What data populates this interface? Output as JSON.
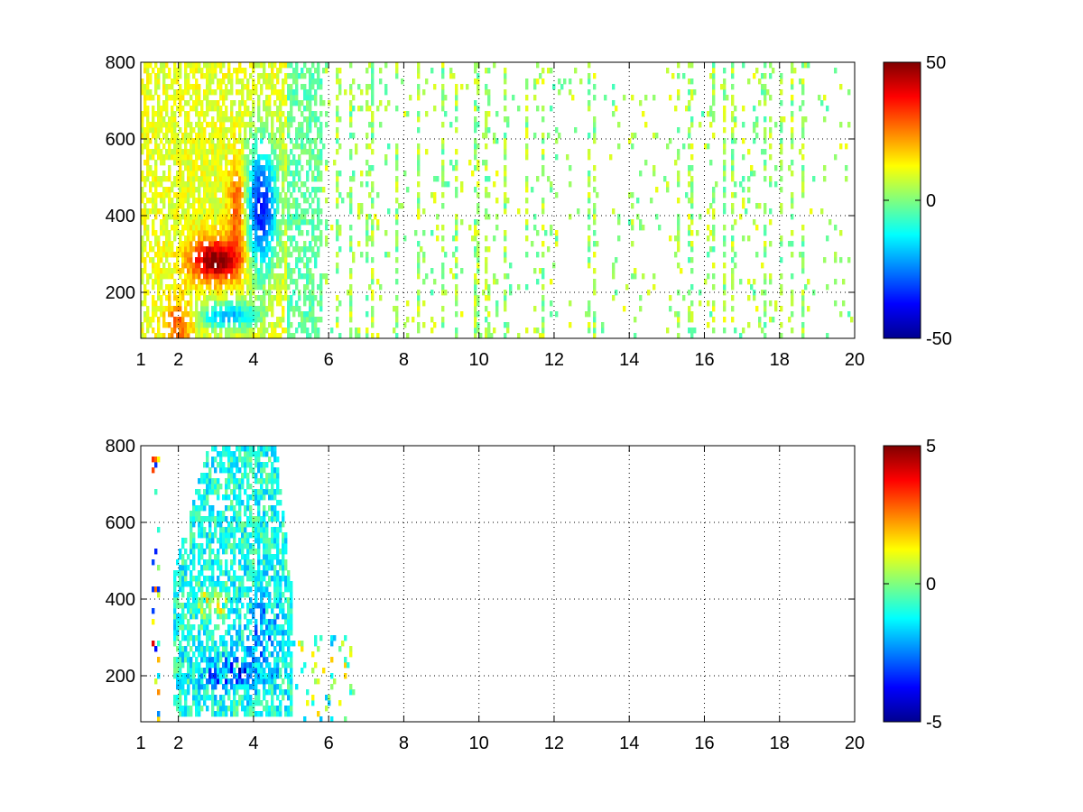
{
  "chart_data": [
    {
      "type": "heatmap",
      "title": "",
      "xlabel": "",
      "ylabel": "",
      "xlim": [
        1,
        20
      ],
      "ylim": [
        80,
        800
      ],
      "x_ticks": [
        1,
        2,
        4,
        6,
        8,
        10,
        12,
        14,
        16,
        18,
        20
      ],
      "y_ticks": [
        200,
        400,
        600,
        800
      ],
      "grid": true,
      "colormap": "jet",
      "colorbar": {
        "range": [
          -50,
          50
        ],
        "ticks": [
          -50,
          0,
          50
        ]
      },
      "features": {
        "band_positive": {
          "x": [
            2.3,
            3.6
          ],
          "y": [
            230,
            330
          ],
          "value": 40
        },
        "band_negative": {
          "x": [
            3.6,
            4.8
          ],
          "y": [
            250,
            600
          ],
          "value": -40
        },
        "sparse_region": {
          "x": [
            6,
            20
          ],
          "value_range": [
            -10,
            15
          ]
        }
      },
      "colors": {
        "low": "#00008f",
        "mid": "#7fff7f",
        "high": "#800000",
        "grid": "#000000"
      }
    },
    {
      "type": "heatmap",
      "title": "",
      "xlabel": "",
      "ylabel": "",
      "xlim": [
        1,
        20
      ],
      "ylim": [
        80,
        800
      ],
      "x_ticks": [
        1,
        2,
        4,
        6,
        8,
        10,
        12,
        14,
        16,
        18,
        20
      ],
      "y_ticks": [
        200,
        400,
        600,
        800
      ],
      "grid": true,
      "colormap": "jet",
      "colorbar": {
        "range": [
          -5,
          5
        ],
        "ticks": [
          -5,
          0,
          5
        ]
      },
      "features": {
        "dense_region": {
          "x": [
            1.9,
            5.0
          ],
          "y": [
            100,
            780
          ]
        },
        "negative_patch": {
          "x": [
            2.5,
            4.2
          ],
          "y": [
            180,
            260
          ],
          "value": -4
        },
        "positive_patch": {
          "x": [
            2.6,
            3.4
          ],
          "y": [
            360,
            420
          ],
          "value": 4
        }
      },
      "colors": {
        "low": "#00008f",
        "mid": "#7fff7f",
        "high": "#800000",
        "grid": "#000000"
      }
    }
  ]
}
